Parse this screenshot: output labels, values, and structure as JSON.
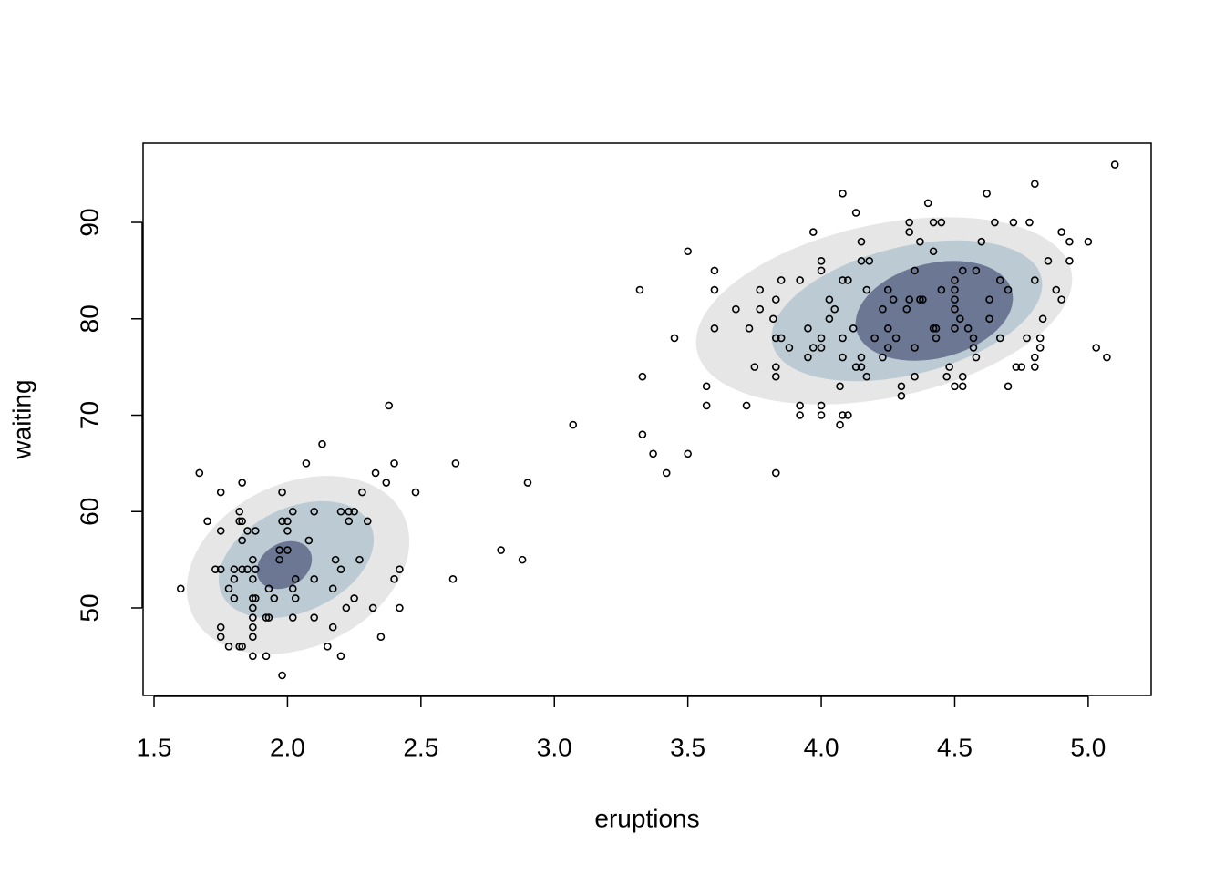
{
  "chart_data": {
    "type": "scatter",
    "xlabel": "eruptions",
    "ylabel": "waiting",
    "x": [
      1.6,
      1.67,
      1.7,
      1.73,
      1.75,
      1.75,
      1.75,
      1.75,
      1.75,
      1.78,
      1.78,
      1.8,
      1.8,
      1.8,
      1.82,
      1.82,
      1.82,
      1.83,
      1.83,
      1.83,
      1.83,
      1.83,
      1.85,
      1.85,
      1.87,
      1.87,
      1.87,
      1.87,
      1.87,
      1.87,
      1.87,
      1.87,
      1.88,
      1.88,
      1.88,
      1.92,
      1.92,
      1.93,
      1.93,
      1.95,
      1.97,
      1.97,
      1.98,
      1.98,
      1.98,
      2.0,
      2.0,
      2.0,
      2.02,
      2.02,
      2.02,
      2.03,
      2.03,
      2.07,
      2.08,
      2.1,
      2.1,
      2.1,
      2.13,
      2.15,
      2.17,
      2.17,
      2.18,
      2.2,
      2.2,
      2.2,
      2.22,
      2.23,
      2.23,
      2.25,
      2.25,
      2.27,
      2.28,
      2.3,
      2.32,
      2.33,
      2.35,
      2.37,
      2.38,
      2.4,
      2.4,
      2.42,
      2.42,
      2.48,
      2.62,
      2.63,
      2.8,
      2.88,
      2.9,
      3.07,
      3.32,
      3.33,
      3.33,
      3.37,
      3.42,
      3.45,
      3.5,
      3.5,
      3.57,
      3.57,
      3.6,
      3.6,
      3.6,
      3.68,
      3.72,
      3.73,
      3.75,
      3.77,
      3.77,
      3.82,
      3.83,
      3.83,
      3.83,
      3.83,
      3.83,
      3.85,
      3.85,
      3.88,
      3.92,
      3.92,
      3.92,
      3.95,
      3.95,
      3.97,
      3.97,
      4.0,
      4.0,
      4.0,
      4.0,
      4.0,
      4.0,
      4.03,
      4.03,
      4.05,
      4.07,
      4.07,
      4.08,
      4.08,
      4.08,
      4.08,
      4.08,
      4.1,
      4.1,
      4.12,
      4.13,
      4.13,
      4.15,
      4.15,
      4.15,
      4.15,
      4.17,
      4.17,
      4.18,
      4.2,
      4.23,
      4.23,
      4.25,
      4.25,
      4.25,
      4.27,
      4.28,
      4.3,
      4.3,
      4.32,
      4.33,
      4.33,
      4.33,
      4.35,
      4.35,
      4.35,
      4.37,
      4.37,
      4.38,
      4.4,
      4.42,
      4.42,
      4.42,
      4.43,
      4.43,
      4.45,
      4.45,
      4.47,
      4.48,
      4.5,
      4.5,
      4.5,
      4.5,
      4.5,
      4.5,
      4.52,
      4.53,
      4.53,
      4.53,
      4.55,
      4.57,
      4.57,
      4.58,
      4.58,
      4.6,
      4.62,
      4.63,
      4.63,
      4.65,
      4.67,
      4.67,
      4.7,
      4.7,
      4.72,
      4.73,
      4.75,
      4.77,
      4.78,
      4.8,
      4.8,
      4.8,
      4.8,
      4.82,
      4.82,
      4.83,
      4.85,
      4.88,
      4.9,
      4.9,
      4.93,
      4.93,
      5.0,
      5.03,
      5.07,
      5.1
    ],
    "values": [
      52,
      64,
      59,
      54,
      54,
      62,
      58,
      48,
      47,
      46,
      52,
      54,
      53,
      51,
      46,
      60,
      59,
      54,
      57,
      59,
      63,
      46,
      54,
      58,
      49,
      48,
      47,
      45,
      50,
      51,
      53,
      55,
      58,
      54,
      51,
      45,
      49,
      49,
      52,
      51,
      56,
      55,
      62,
      59,
      43,
      59,
      56,
      58,
      60,
      52,
      49,
      51,
      53,
      65,
      57,
      53,
      49,
      60,
      67,
      46,
      52,
      48,
      55,
      54,
      45,
      60,
      50,
      59,
      60,
      51,
      60,
      55,
      62,
      59,
      50,
      64,
      47,
      63,
      71,
      65,
      53,
      54,
      50,
      62,
      53,
      65,
      56,
      55,
      63,
      69,
      83,
      74,
      68,
      66,
      64,
      78,
      87,
      66,
      73,
      71,
      85,
      83,
      79,
      81,
      71,
      79,
      75,
      83,
      81,
      80,
      82,
      78,
      75,
      74,
      64,
      78,
      84,
      77,
      84,
      71,
      70,
      79,
      76,
      77,
      89,
      86,
      85,
      78,
      77,
      71,
      70,
      82,
      80,
      81,
      73,
      69,
      93,
      84,
      78,
      76,
      70,
      84,
      70,
      79,
      91,
      75,
      76,
      75,
      88,
      86,
      83,
      74,
      86,
      78,
      76,
      81,
      77,
      79,
      83,
      82,
      78,
      73,
      72,
      81,
      89,
      90,
      82,
      85,
      77,
      74,
      88,
      82,
      82,
      92,
      87,
      90,
      79,
      79,
      78,
      90,
      83,
      74,
      75,
      73,
      84,
      83,
      82,
      81,
      79,
      80,
      85,
      74,
      73,
      79,
      78,
      77,
      85,
      76,
      88,
      93,
      82,
      80,
      90,
      84,
      78,
      73,
      83,
      90,
      75,
      75,
      78,
      90,
      94,
      84,
      76,
      75,
      78,
      77,
      80,
      86,
      83,
      89,
      82,
      88,
      86,
      88,
      77,
      76,
      96
    ],
    "xlim": [
      1.459,
      5.236
    ],
    "ylim": [
      40.92,
      98.23
    ],
    "xticks": [
      1.5,
      {
        "value": 2,
        "label": "2.0"
      },
      2.5,
      {
        "value": 3,
        "label": "3.0"
      },
      3.5,
      {
        "value": 4,
        "label": "4.0"
      },
      4.5,
      {
        "value": 5,
        "label": "5.0"
      }
    ],
    "yticks": [
      50,
      60,
      70,
      80,
      90
    ],
    "color": "#000000"
  }
}
